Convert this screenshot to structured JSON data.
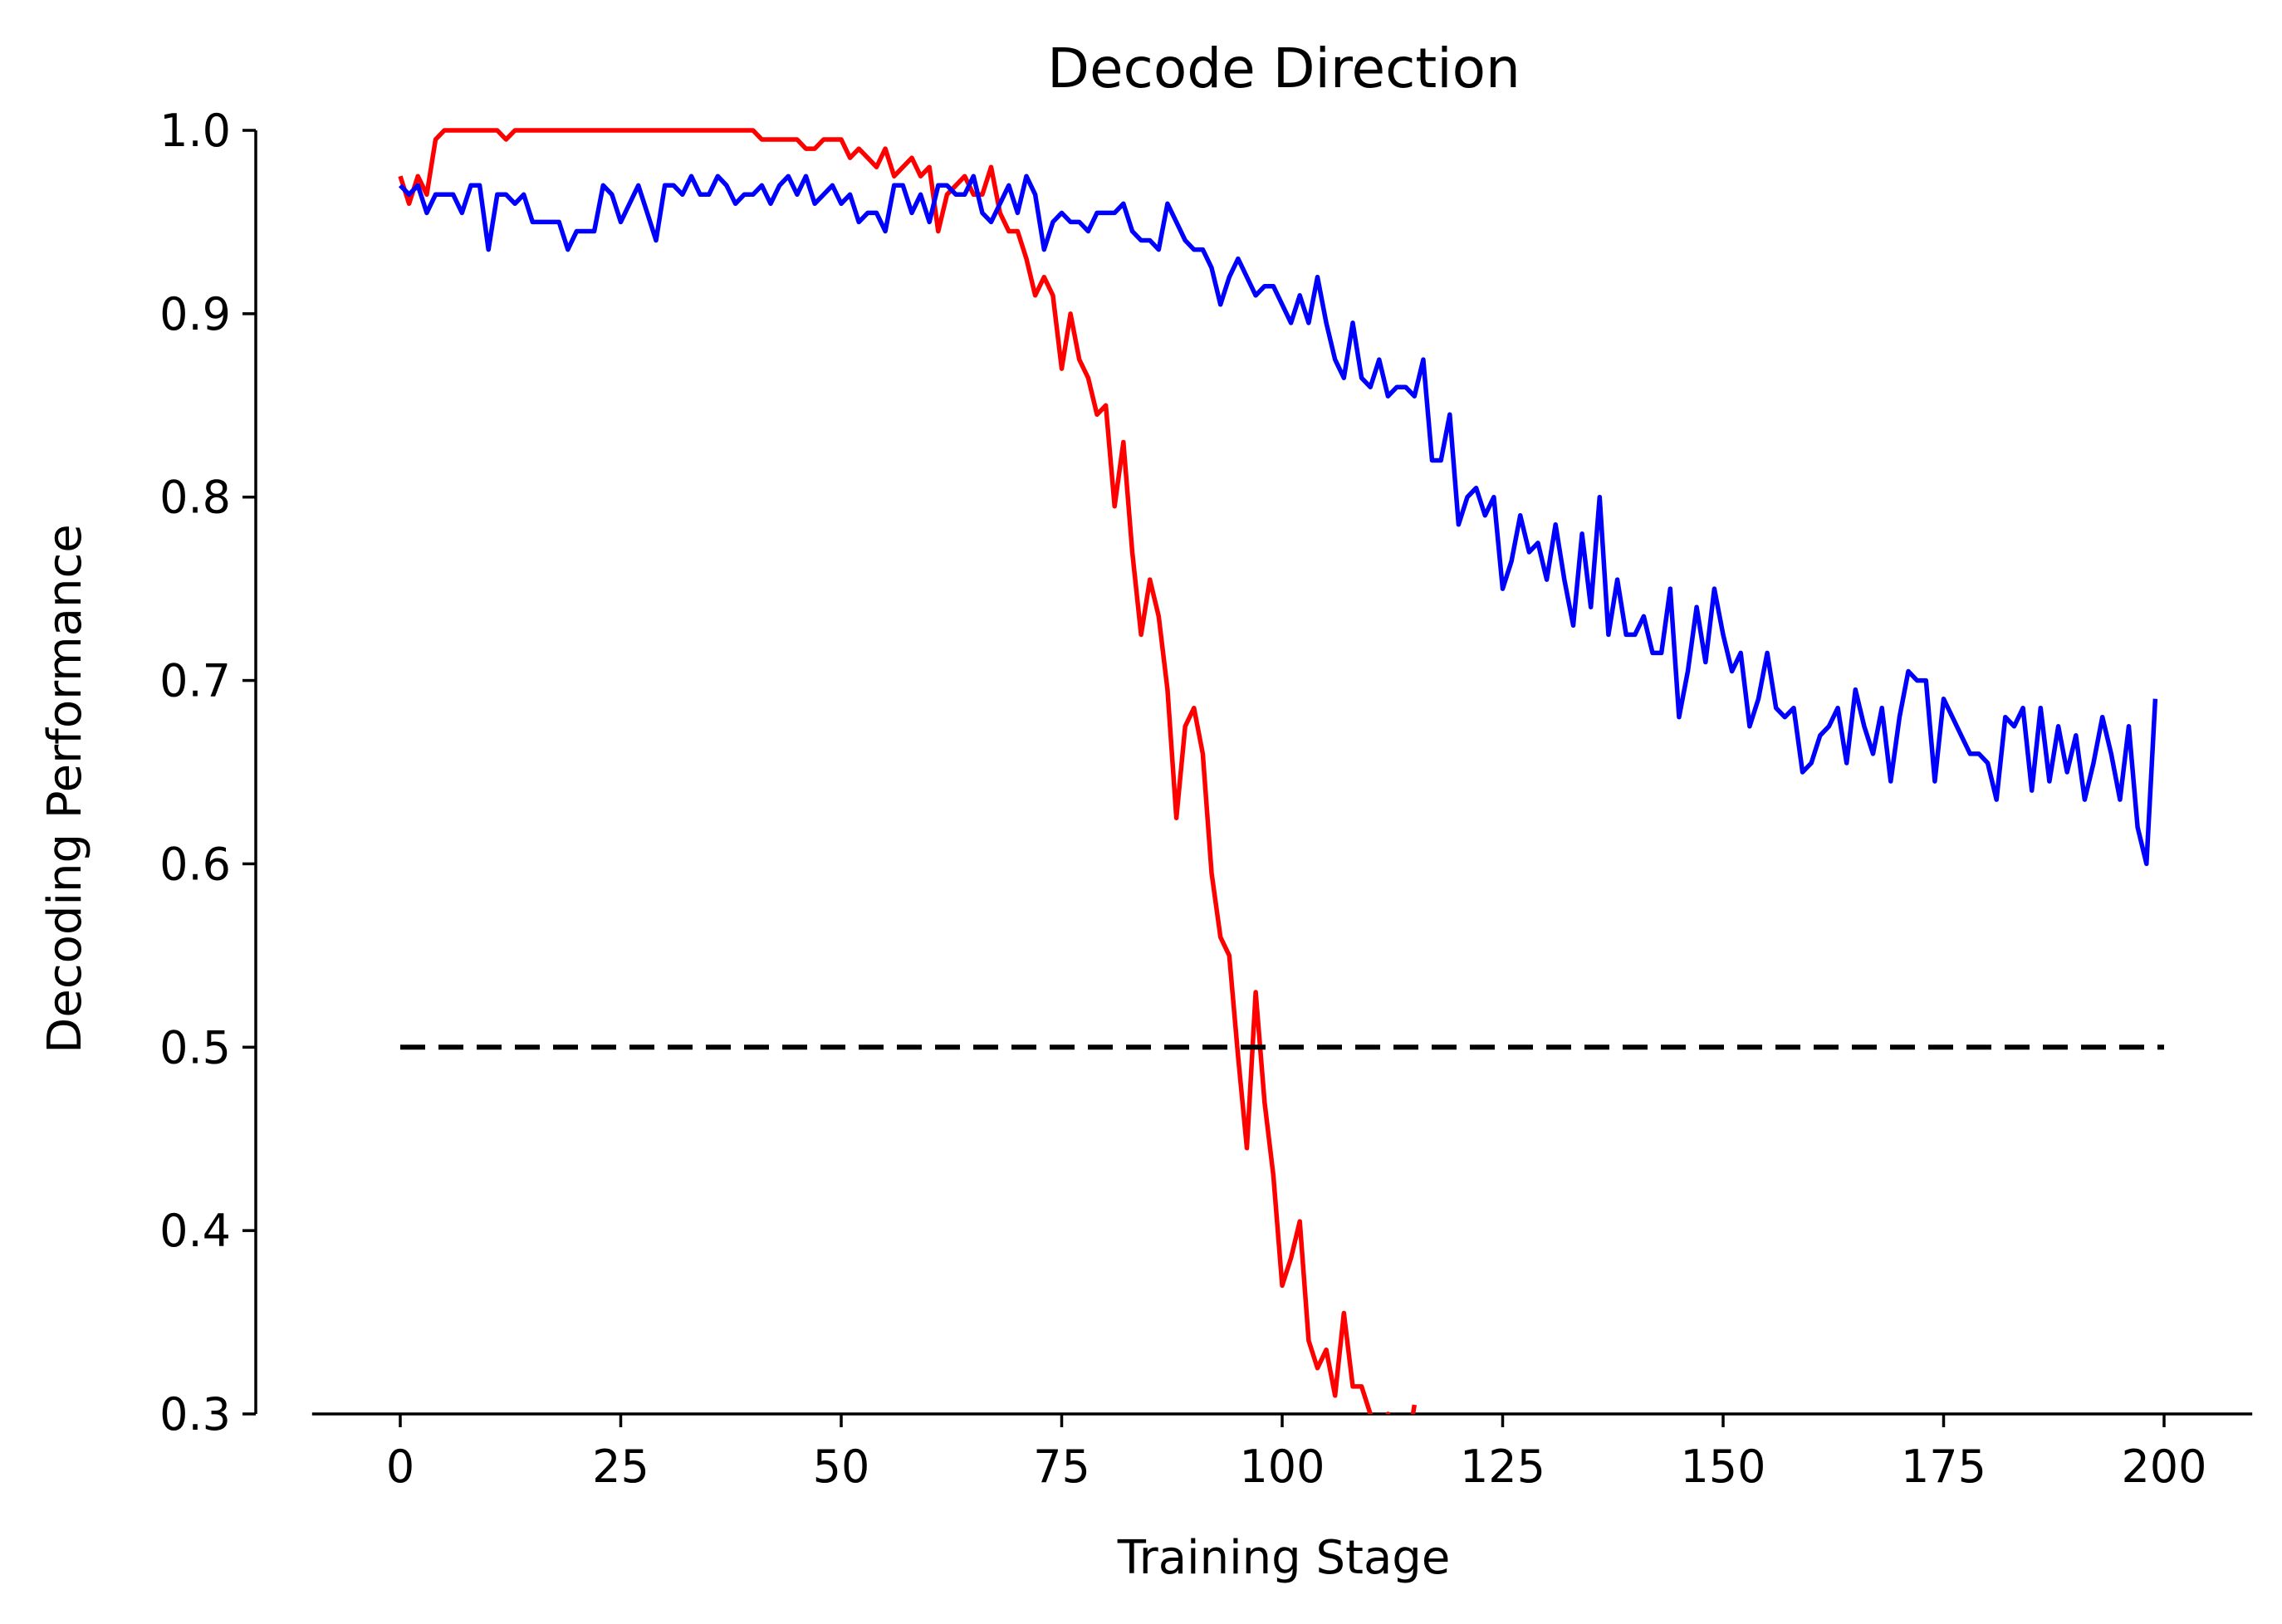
{
  "chart_data": {
    "type": "line",
    "title": "Decode Direction",
    "xlabel": "Training Stage",
    "ylabel": "Decoding Performance",
    "xlim": [
      -10,
      210
    ],
    "ylim": [
      0.3,
      1.0
    ],
    "xticks": [
      0,
      25,
      50,
      75,
      100,
      125,
      150,
      175,
      200
    ],
    "xtick_labels": [
      "0",
      "25",
      "50",
      "75",
      "100",
      "125",
      "150",
      "175",
      "200"
    ],
    "yticks": [
      0.3,
      0.4,
      0.5,
      0.6,
      0.7,
      0.8,
      0.9,
      1.0
    ],
    "ytick_labels": [
      "0.3",
      "0.4",
      "0.5",
      "0.6",
      "0.7",
      "0.8",
      "0.9",
      "1.0"
    ],
    "grid": false,
    "series": [
      {
        "color": "#ff0000",
        "x": [
          0,
          1,
          2,
          3,
          4,
          5,
          6,
          7,
          8,
          9,
          10,
          11,
          12,
          13,
          14,
          15,
          16,
          17,
          18,
          19,
          20,
          21,
          22,
          23,
          24,
          25,
          26,
          27,
          28,
          29,
          30,
          31,
          32,
          33,
          34,
          35,
          36,
          37,
          38,
          39,
          40,
          41,
          42,
          43,
          44,
          45,
          46,
          47,
          48,
          49,
          50,
          51,
          52,
          53,
          54,
          55,
          56,
          57,
          58,
          59,
          60,
          61,
          62,
          63,
          64,
          65,
          66,
          67,
          68,
          69,
          70,
          71,
          72,
          73,
          74,
          75,
          76,
          77,
          78,
          79,
          80,
          81,
          82,
          83,
          84,
          85,
          86,
          87,
          88,
          89,
          90,
          91,
          92,
          93,
          94,
          95,
          96,
          97,
          98,
          99,
          100,
          101,
          102,
          103,
          104,
          105,
          106,
          107,
          108,
          109,
          110,
          111,
          112,
          113,
          114,
          115
        ],
        "values": [
          0.975,
          0.96,
          0.975,
          0.965,
          0.995,
          1.0,
          1.0,
          1.0,
          1.0,
          1.0,
          1.0,
          1.0,
          0.995,
          1.0,
          1.0,
          1.0,
          1.0,
          1.0,
          1.0,
          1.0,
          1.0,
          1.0,
          1.0,
          1.0,
          1.0,
          1.0,
          1.0,
          1.0,
          1.0,
          1.0,
          1.0,
          1.0,
          1.0,
          1.0,
          1.0,
          1.0,
          1.0,
          1.0,
          1.0,
          1.0,
          1.0,
          0.995,
          0.995,
          0.995,
          0.995,
          0.995,
          0.99,
          0.99,
          0.995,
          0.995,
          0.995,
          0.985,
          0.99,
          0.985,
          0.98,
          0.99,
          0.975,
          0.98,
          0.985,
          0.975,
          0.98,
          0.945,
          0.965,
          0.97,
          0.975,
          0.965,
          0.965,
          0.98,
          0.955,
          0.945,
          0.945,
          0.93,
          0.91,
          0.92,
          0.91,
          0.87,
          0.9,
          0.875,
          0.865,
          0.845,
          0.85,
          0.795,
          0.83,
          0.77,
          0.725,
          0.755,
          0.735,
          0.695,
          0.625,
          0.675,
          0.685,
          0.66,
          0.595,
          0.56,
          0.55,
          0.495,
          0.445,
          0.53,
          0.47,
          0.43,
          0.37,
          0.385,
          0.405,
          0.34,
          0.325,
          0.335,
          0.31,
          0.355,
          0.315,
          0.315,
          0.3,
          0.28,
          0.3,
          0.29,
          0.275,
          0.305
        ]
      },
      {
        "color": "#0000ff",
        "x": [
          0,
          1,
          2,
          3,
          4,
          5,
          6,
          7,
          8,
          9,
          10,
          11,
          12,
          13,
          14,
          15,
          16,
          17,
          18,
          19,
          20,
          21,
          22,
          23,
          24,
          25,
          26,
          27,
          28,
          29,
          30,
          31,
          32,
          33,
          34,
          35,
          36,
          37,
          38,
          39,
          40,
          41,
          42,
          43,
          44,
          45,
          46,
          47,
          48,
          49,
          50,
          51,
          52,
          53,
          54,
          55,
          56,
          57,
          58,
          59,
          60,
          61,
          62,
          63,
          64,
          65,
          66,
          67,
          68,
          69,
          70,
          71,
          72,
          73,
          74,
          75,
          76,
          77,
          78,
          79,
          80,
          81,
          82,
          83,
          84,
          85,
          86,
          87,
          88,
          89,
          90,
          91,
          92,
          93,
          94,
          95,
          96,
          97,
          98,
          99,
          100,
          101,
          102,
          103,
          104,
          105,
          106,
          107,
          108,
          109,
          110,
          111,
          112,
          113,
          114,
          115,
          116,
          117,
          118,
          119,
          120,
          121,
          122,
          123,
          124,
          125,
          126,
          127,
          128,
          129,
          130,
          131,
          132,
          133,
          134,
          135,
          136,
          137,
          138,
          139,
          140,
          141,
          142,
          143,
          144,
          145,
          146,
          147,
          148,
          149,
          150,
          151,
          152,
          153,
          154,
          155,
          156,
          157,
          158,
          159,
          160,
          161,
          162,
          163,
          164,
          165,
          166,
          167,
          168,
          169,
          170,
          171,
          172,
          173,
          174,
          175,
          176,
          177,
          178,
          179,
          180,
          181,
          182,
          183,
          184,
          185,
          186,
          187,
          188,
          189,
          190,
          191,
          192,
          193,
          194,
          195,
          196,
          197,
          198,
          199
        ],
        "values": [
          0.97,
          0.965,
          0.97,
          0.955,
          0.965,
          0.965,
          0.965,
          0.955,
          0.97,
          0.97,
          0.935,
          0.965,
          0.965,
          0.96,
          0.965,
          0.95,
          0.95,
          0.95,
          0.95,
          0.935,
          0.945,
          0.945,
          0.945,
          0.97,
          0.965,
          0.95,
          0.96,
          0.97,
          0.955,
          0.94,
          0.97,
          0.97,
          0.965,
          0.975,
          0.965,
          0.965,
          0.975,
          0.97,
          0.96,
          0.965,
          0.965,
          0.97,
          0.96,
          0.97,
          0.975,
          0.965,
          0.975,
          0.96,
          0.965,
          0.97,
          0.96,
          0.965,
          0.95,
          0.955,
          0.955,
          0.945,
          0.97,
          0.97,
          0.955,
          0.965,
          0.95,
          0.97,
          0.97,
          0.965,
          0.965,
          0.975,
          0.955,
          0.95,
          0.96,
          0.97,
          0.955,
          0.975,
          0.965,
          0.935,
          0.95,
          0.955,
          0.95,
          0.95,
          0.945,
          0.955,
          0.955,
          0.955,
          0.96,
          0.945,
          0.94,
          0.94,
          0.935,
          0.96,
          0.95,
          0.94,
          0.935,
          0.935,
          0.925,
          0.905,
          0.92,
          0.93,
          0.92,
          0.91,
          0.915,
          0.915,
          0.905,
          0.895,
          0.91,
          0.895,
          0.92,
          0.895,
          0.875,
          0.865,
          0.895,
          0.865,
          0.86,
          0.875,
          0.855,
          0.86,
          0.86,
          0.855,
          0.875,
          0.82,
          0.82,
          0.845,
          0.785,
          0.8,
          0.805,
          0.79,
          0.8,
          0.75,
          0.765,
          0.79,
          0.77,
          0.775,
          0.755,
          0.785,
          0.755,
          0.73,
          0.78,
          0.74,
          0.8,
          0.725,
          0.755,
          0.725,
          0.725,
          0.735,
          0.715,
          0.715,
          0.75,
          0.68,
          0.705,
          0.74,
          0.71,
          0.75,
          0.725,
          0.705,
          0.715,
          0.675,
          0.69,
          0.715,
          0.685,
          0.68,
          0.685,
          0.65,
          0.655,
          0.67,
          0.675,
          0.685,
          0.655,
          0.695,
          0.675,
          0.66,
          0.685,
          0.645,
          0.68,
          0.705,
          0.7,
          0.7,
          0.645,
          0.69,
          0.68,
          0.67,
          0.66,
          0.66,
          0.655,
          0.635,
          0.68,
          0.675,
          0.685,
          0.64,
          0.685,
          0.645,
          0.675,
          0.65,
          0.67,
          0.635,
          0.655,
          0.68,
          0.66,
          0.635,
          0.675,
          0.62,
          0.6,
          0.69
        ]
      },
      {
        "color": "#000000",
        "dashed": true,
        "x": [
          0,
          200
        ],
        "values": [
          0.5,
          0.5
        ]
      }
    ]
  }
}
